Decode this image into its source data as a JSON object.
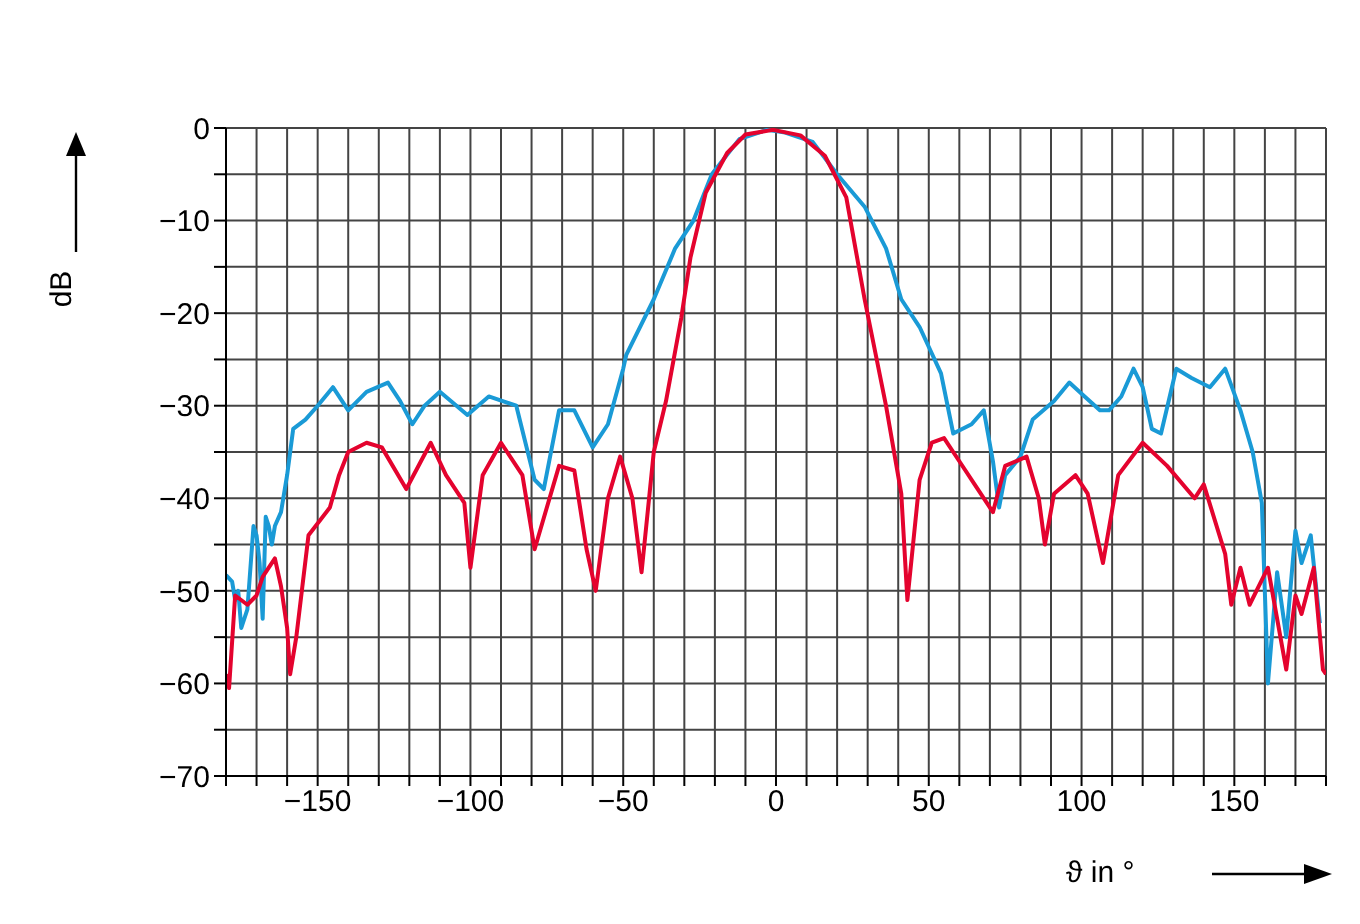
{
  "chart_data": {
    "type": "line",
    "xlabel": "ϑ in °",
    "ylabel": "dB",
    "xlim": [
      -180,
      180
    ],
    "xticks": [
      {
        "value": -180,
        "label": null
      },
      {
        "value": -170,
        "label": null
      },
      {
        "value": -160,
        "label": null
      },
      {
        "value": -150,
        "label": "−150"
      },
      {
        "value": -140,
        "label": null
      },
      {
        "value": -130,
        "label": null
      },
      {
        "value": -120,
        "label": null
      },
      {
        "value": -110,
        "label": null
      },
      {
        "value": -100,
        "label": "−100"
      },
      {
        "value": -90,
        "label": null
      },
      {
        "value": -80,
        "label": null
      },
      {
        "value": -70,
        "label": null
      },
      {
        "value": -60,
        "label": null
      },
      {
        "value": -50,
        "label": "−50"
      },
      {
        "value": -40,
        "label": null
      },
      {
        "value": -30,
        "label": null
      },
      {
        "value": -20,
        "label": null
      },
      {
        "value": -10,
        "label": null
      },
      0,
      {
        "value": 10,
        "label": null
      },
      {
        "value": 20,
        "label": null
      },
      {
        "value": 30,
        "label": null
      },
      {
        "value": 40,
        "label": null
      },
      50,
      {
        "value": 60,
        "label": null
      },
      {
        "value": 70,
        "label": null
      },
      {
        "value": 80,
        "label": null
      },
      {
        "value": 90,
        "label": null
      },
      100,
      {
        "value": 110,
        "label": null
      },
      {
        "value": 120,
        "label": null
      },
      {
        "value": 130,
        "label": null
      },
      {
        "value": 140,
        "label": null
      },
      150,
      {
        "value": 160,
        "label": null
      },
      {
        "value": 170,
        "label": null
      },
      {
        "value": 180,
        "label": null
      }
    ],
    "ylim": [
      -70,
      0
    ],
    "yticks": [
      {
        "value": -70,
        "label": "−70"
      },
      {
        "value": -65,
        "label": null
      },
      {
        "value": -60,
        "label": "−60"
      },
      {
        "value": -55,
        "label": null
      },
      {
        "value": -50,
        "label": "−50"
      },
      {
        "value": -45,
        "label": null
      },
      {
        "value": -40,
        "label": "−40"
      },
      {
        "value": -35,
        "label": null
      },
      {
        "value": -30,
        "label": "−30"
      },
      {
        "value": -25,
        "label": null
      },
      {
        "value": -20,
        "label": "−20"
      },
      {
        "value": -15,
        "label": null
      },
      {
        "value": -10,
        "label": "−10"
      },
      {
        "value": -5,
        "label": null
      },
      0
    ],
    "grid": true,
    "legend": false,
    "marker": "none",
    "line_style": "solid",
    "series": [
      {
        "color": "#1a9ad6",
        "x": [
          -180,
          -178,
          -177,
          -176,
          -175,
          -173,
          -171,
          -170,
          -169,
          -168,
          -167,
          -166,
          -165,
          -164,
          -162,
          -160,
          -158,
          -154,
          -150,
          -145,
          -140,
          -134,
          -127,
          -123,
          -119,
          -115,
          -110,
          -101,
          -94,
          -85,
          -79,
          -76,
          -71,
          -66,
          -60,
          -55,
          -50,
          -49,
          -40,
          -33,
          -27,
          -21,
          -12,
          -3,
          3,
          12,
          20,
          29,
          36,
          41,
          47,
          54,
          58,
          64,
          68,
          71,
          73,
          75,
          80,
          84,
          91,
          96,
          101,
          106,
          109,
          113,
          117,
          120,
          123,
          126,
          131,
          136,
          142,
          147,
          152,
          156,
          159,
          161,
          164,
          167,
          170,
          172,
          175,
          178
        ],
        "values": [
          -48.3,
          -49,
          -51,
          -50,
          -54,
          -52,
          -43,
          -44,
          -47,
          -53,
          -42,
          -43,
          -45,
          -43,
          -41.5,
          -37.5,
          -32.5,
          -31.5,
          -30,
          -28,
          -30.5,
          -28.5,
          -27.5,
          -29.5,
          -32,
          -30,
          -28.5,
          -31,
          -29,
          -30,
          -38,
          -39,
          -30.5,
          -30.5,
          -34.5,
          -32,
          -26,
          -24.5,
          -18.5,
          -13,
          -10,
          -5,
          -1.2,
          -0.2,
          -0.5,
          -1.5,
          -5,
          -8.5,
          -13,
          -18.5,
          -21.5,
          -26.5,
          -33,
          -32,
          -30.5,
          -36,
          -41,
          -37.5,
          -35.5,
          -31.5,
          -29.5,
          -27.5,
          -29,
          -30.5,
          -30.5,
          -29,
          -26,
          -28,
          -32.5,
          -33,
          -26,
          -27,
          -28,
          -26,
          -30.5,
          -35,
          -40.5,
          -60,
          -48,
          -55,
          -43.5,
          -47,
          -44,
          -53.5
        ]
      },
      {
        "color": "#e4032e",
        "x": [
          -180,
          -179,
          -177,
          -173,
          -170,
          -168,
          -164,
          -162,
          -160,
          -159,
          -157,
          -153,
          -146,
          -143,
          -140,
          -134,
          -129,
          -121,
          -113,
          -108,
          -102,
          -100,
          -96,
          -90,
          -83,
          -79,
          -71,
          -66,
          -62,
          -59,
          -55,
          -51,
          -47,
          -44,
          -40,
          -36,
          -31,
          -28,
          -23,
          -16,
          -10,
          -1,
          8,
          16,
          23,
          29,
          36,
          41,
          43,
          47,
          51,
          55,
          60,
          65,
          71,
          75,
          82,
          86,
          88,
          91,
          98,
          102,
          107,
          112,
          120,
          128,
          137,
          140,
          147,
          149,
          152,
          155,
          161,
          167,
          170,
          172,
          176,
          179,
          180
        ],
        "values": [
          -59,
          -60.5,
          -50.5,
          -51.5,
          -50.5,
          -48.5,
          -46.5,
          -49.5,
          -54,
          -59,
          -55,
          -44,
          -41,
          -37.5,
          -35,
          -34,
          -34.5,
          -39,
          -34,
          -37.5,
          -40.5,
          -47.5,
          -37.5,
          -34,
          -37.5,
          -45.5,
          -36.5,
          -37,
          -45.5,
          -50,
          -40,
          -35.5,
          -40,
          -48,
          -35,
          -29.5,
          -20.5,
          -14,
          -7,
          -2.7,
          -0.7,
          -0.2,
          -0.8,
          -3,
          -7.5,
          -18.5,
          -30,
          -39.5,
          -51,
          -38,
          -34,
          -33.5,
          -36,
          -38.5,
          -41.5,
          -36.5,
          -35.5,
          -40,
          -45,
          -39.5,
          -37.5,
          -39.5,
          -47,
          -37.5,
          -34,
          -36.5,
          -40,
          -38.5,
          -46,
          -51.5,
          -47.5,
          -51.5,
          -47.5,
          -58.5,
          -50.5,
          -52.5,
          -47.5,
          -58.5,
          -59
        ]
      }
    ]
  }
}
